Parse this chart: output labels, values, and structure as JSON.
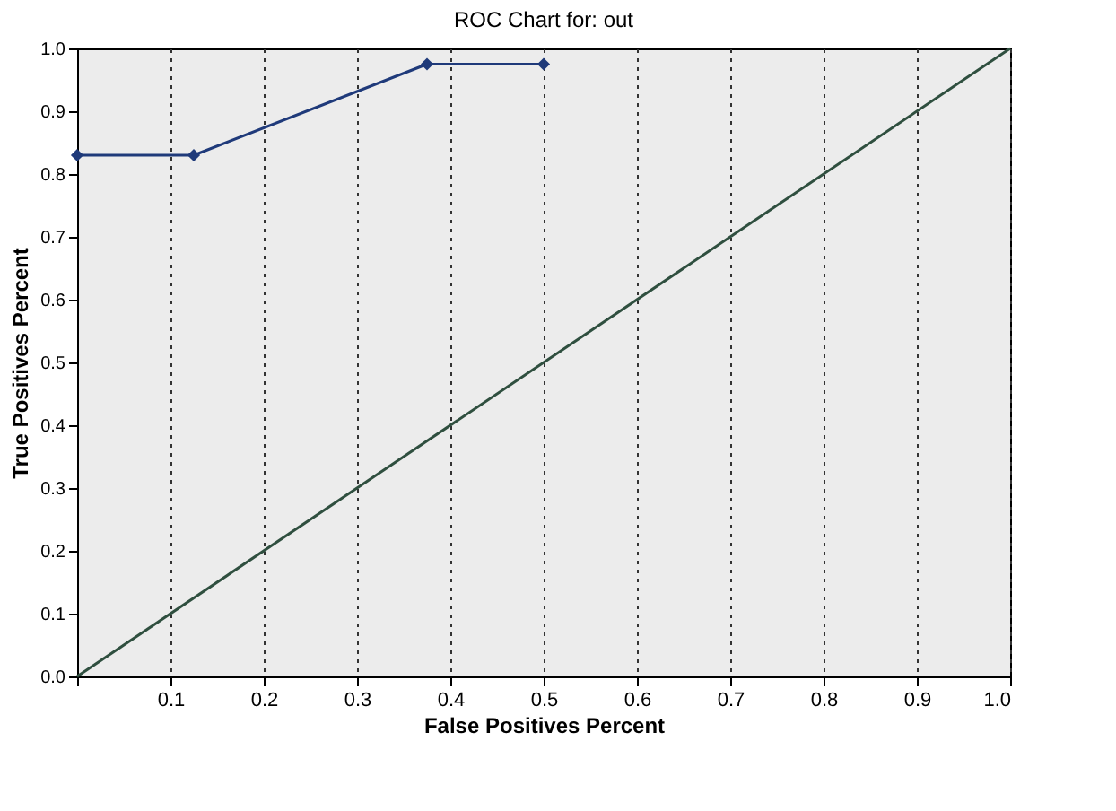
{
  "chart_data": {
    "type": "line",
    "title": "ROC Chart for: out",
    "xlabel": "False Positives Percent",
    "ylabel": "True Positives Percent",
    "series": [
      {
        "x": [
          0,
          0.125,
          0.375,
          0.5
        ],
        "values": [
          0.83,
          0.83,
          0.975,
          0.975
        ],
        "color": "#1f3a7a",
        "marker": "diamond"
      },
      {
        "x": [
          0,
          1
        ],
        "values": [
          0,
          1
        ],
        "color": "#2f4f3f",
        "marker": "none"
      }
    ],
    "xlim": [
      0,
      1
    ],
    "ylim": [
      0,
      1
    ],
    "xticks": [
      {
        "value": 0,
        "label": null
      },
      0.1,
      0.2,
      0.3,
      0.4,
      0.5,
      0.6,
      0.7,
      0.8,
      0.9,
      {
        "value": 1,
        "label": "1.0"
      }
    ],
    "yticks": [
      {
        "value": 0,
        "label": "0.0"
      },
      0.1,
      0.2,
      0.3,
      0.4,
      0.5,
      0.6,
      0.7,
      0.8,
      0.9,
      {
        "value": 1,
        "label": "1.0"
      }
    ],
    "grid": "x"
  }
}
